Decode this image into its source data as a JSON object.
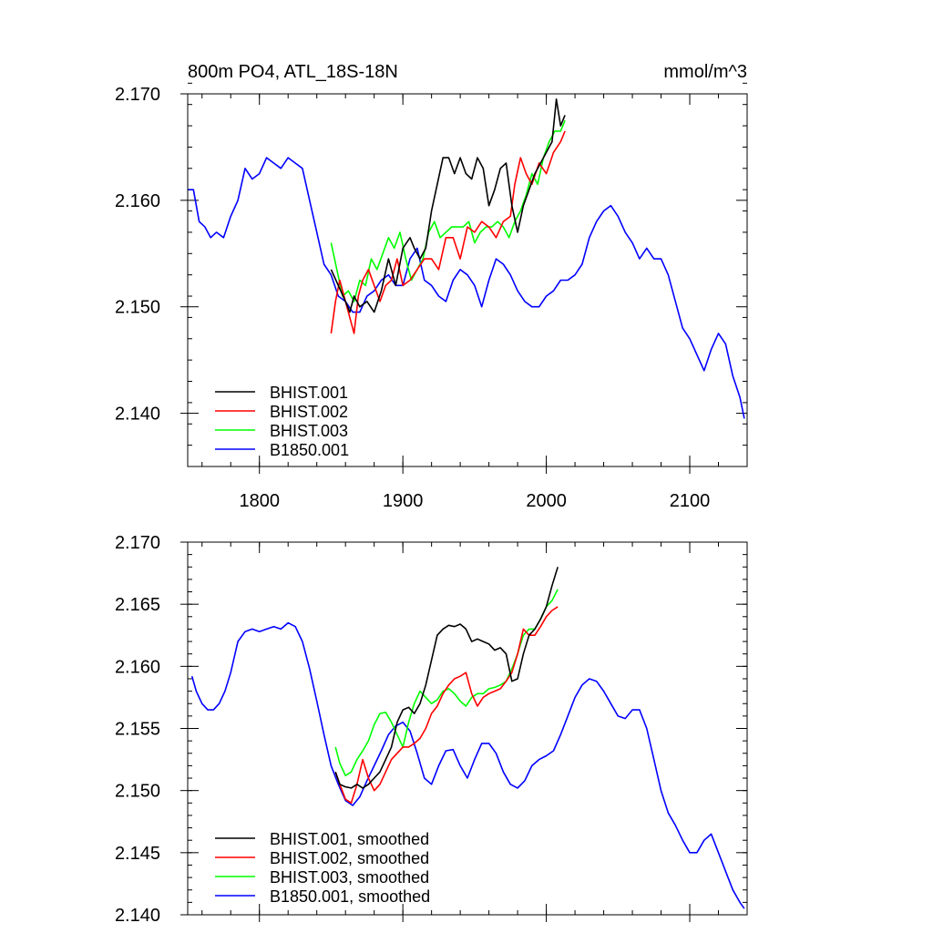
{
  "chart_data": [
    {
      "type": "line",
      "title": "800m PO4, ATL_18S-18N",
      "units": "mmol/m^3",
      "xlim": [
        1750,
        2140
      ],
      "ylim": [
        2.135,
        2.17
      ],
      "xticks": [
        "1800",
        "1900",
        "2000",
        "2100"
      ],
      "yticks": [
        "2.140",
        "2.150",
        "2.160",
        "2.170"
      ],
      "legend_position": "bottom-left",
      "series": [
        {
          "name": "BHIST.001",
          "color": "#000000",
          "x": [
            1850,
            1855,
            1860,
            1863,
            1866,
            1870,
            1875,
            1880,
            1885,
            1890,
            1895,
            1900,
            1905,
            1908,
            1912,
            1916,
            1920,
            1924,
            1928,
            1932,
            1936,
            1940,
            1944,
            1948,
            1952,
            1956,
            1960,
            1964,
            1968,
            1972,
            1976,
            1980,
            1984,
            1988,
            1992,
            1996,
            2000,
            2004,
            2007,
            2010,
            2013
          ],
          "y": [
            2.1535,
            2.152,
            2.1505,
            2.1495,
            2.151,
            2.15,
            2.1505,
            2.1495,
            2.1515,
            2.1545,
            2.152,
            2.1555,
            2.1565,
            2.1555,
            2.1545,
            2.1555,
            2.159,
            2.1615,
            2.164,
            2.164,
            2.1625,
            2.164,
            2.1625,
            2.162,
            2.164,
            2.163,
            2.1595,
            2.161,
            2.163,
            2.1635,
            2.1595,
            2.157,
            2.1595,
            2.161,
            2.1625,
            2.1635,
            2.1645,
            2.1655,
            2.1695,
            2.167,
            2.168
          ]
        },
        {
          "name": "BHIST.002",
          "color": "#ff0000",
          "x": [
            1850,
            1853,
            1856,
            1860,
            1863,
            1866,
            1869,
            1872,
            1876,
            1880,
            1884,
            1888,
            1892,
            1896,
            1900,
            1905,
            1910,
            1915,
            1920,
            1925,
            1930,
            1935,
            1940,
            1945,
            1950,
            1955,
            1960,
            1965,
            1970,
            1975,
            1978,
            1982,
            1986,
            1990,
            1995,
            2000,
            2005,
            2010,
            2013
          ],
          "y": [
            2.1475,
            2.1505,
            2.1525,
            2.1505,
            2.149,
            2.1475,
            2.151,
            2.1525,
            2.1535,
            2.152,
            2.1505,
            2.152,
            2.1525,
            2.1545,
            2.152,
            2.1525,
            2.1535,
            2.1545,
            2.1545,
            2.1535,
            2.1565,
            2.1565,
            2.1545,
            2.1575,
            2.157,
            2.158,
            2.1575,
            2.1565,
            2.158,
            2.1585,
            2.1615,
            2.164,
            2.1625,
            2.1615,
            2.1635,
            2.1625,
            2.1645,
            2.1655,
            2.1665
          ]
        },
        {
          "name": "BHIST.003",
          "color": "#00ff00",
          "x": [
            1850,
            1854,
            1858,
            1862,
            1866,
            1870,
            1874,
            1878,
            1882,
            1886,
            1890,
            1894,
            1898,
            1902,
            1906,
            1910,
            1914,
            1918,
            1922,
            1926,
            1930,
            1934,
            1938,
            1942,
            1946,
            1950,
            1954,
            1958,
            1962,
            1966,
            1970,
            1974,
            1978,
            1982,
            1986,
            1990,
            1994,
            1998,
            2002,
            2006,
            2010,
            2013
          ],
          "y": [
            2.156,
            2.1535,
            2.151,
            2.1515,
            2.1505,
            2.1525,
            2.152,
            2.1545,
            2.1535,
            2.155,
            2.1565,
            2.1555,
            2.157,
            2.1545,
            2.1525,
            2.1535,
            2.1545,
            2.157,
            2.158,
            2.1565,
            2.157,
            2.1575,
            2.1575,
            2.1575,
            2.158,
            2.156,
            2.157,
            2.1575,
            2.1575,
            2.158,
            2.1575,
            2.1565,
            2.158,
            2.159,
            2.1605,
            2.1625,
            2.1615,
            2.164,
            2.1655,
            2.1665,
            2.1665,
            2.1675
          ]
        },
        {
          "name": "B1850.001",
          "color": "#0000ff",
          "x": [
            1750,
            1754,
            1758,
            1762,
            1766,
            1770,
            1775,
            1780,
            1785,
            1790,
            1795,
            1800,
            1805,
            1810,
            1815,
            1820,
            1825,
            1830,
            1835,
            1840,
            1845,
            1850,
            1855,
            1860,
            1865,
            1870,
            1875,
            1880,
            1885,
            1890,
            1895,
            1900,
            1905,
            1910,
            1915,
            1920,
            1925,
            1930,
            1935,
            1940,
            1945,
            1950,
            1955,
            1960,
            1965,
            1970,
            1975,
            1980,
            1985,
            1990,
            1995,
            2000,
            2005,
            2010,
            2015,
            2020,
            2025,
            2030,
            2035,
            2040,
            2045,
            2050,
            2055,
            2060,
            2065,
            2070,
            2075,
            2080,
            2085,
            2090,
            2095,
            2100,
            2105,
            2110,
            2115,
            2120,
            2125,
            2130,
            2135,
            2138
          ],
          "y": [
            2.161,
            2.161,
            2.158,
            2.1575,
            2.1565,
            2.157,
            2.1565,
            2.1585,
            2.16,
            2.163,
            2.162,
            2.1625,
            2.164,
            2.1635,
            2.163,
            2.164,
            2.1635,
            2.163,
            2.16,
            2.157,
            2.154,
            2.153,
            2.151,
            2.1505,
            2.1495,
            2.1495,
            2.151,
            2.1515,
            2.1525,
            2.153,
            2.152,
            2.152,
            2.1545,
            2.1555,
            2.1525,
            2.152,
            2.151,
            2.1505,
            2.1525,
            2.1535,
            2.153,
            2.152,
            2.15,
            2.1525,
            2.1545,
            2.154,
            2.153,
            2.1515,
            2.1505,
            2.15,
            2.15,
            2.151,
            2.1515,
            2.1525,
            2.1525,
            2.153,
            2.154,
            2.1565,
            2.158,
            2.159,
            2.1595,
            2.1585,
            2.157,
            2.156,
            2.1545,
            2.1555,
            2.1545,
            2.1545,
            2.153,
            2.1505,
            2.148,
            2.147,
            2.1455,
            2.144,
            2.146,
            2.1475,
            2.1465,
            2.1435,
            2.1415,
            2.1395
          ]
        }
      ]
    },
    {
      "type": "line",
      "xlim": [
        1750,
        2140
      ],
      "ylim": [
        2.14,
        2.17
      ],
      "xticks": [],
      "yticks": [
        "2.140",
        "2.145",
        "2.150",
        "2.155",
        "2.160",
        "2.165",
        "2.170"
      ],
      "legend_position": "bottom-left",
      "series": [
        {
          "name": "BHIST.001, smoothed",
          "color": "#000000",
          "x": [
            1853,
            1856,
            1860,
            1864,
            1868,
            1872,
            1876,
            1880,
            1884,
            1888,
            1892,
            1896,
            1900,
            1904,
            1908,
            1912,
            1916,
            1920,
            1924,
            1928,
            1932,
            1936,
            1940,
            1944,
            1948,
            1952,
            1956,
            1960,
            1964,
            1968,
            1972,
            1976,
            1980,
            1984,
            1988,
            1992,
            1996,
            2000,
            2004,
            2008
          ],
          "y": [
            2.1515,
            2.1505,
            2.1503,
            2.1502,
            2.1505,
            2.1502,
            2.1505,
            2.151,
            2.1515,
            2.1525,
            2.1535,
            2.1555,
            2.1565,
            2.1567,
            2.1562,
            2.157,
            2.1585,
            2.1605,
            2.1625,
            2.163,
            2.1633,
            2.1632,
            2.1634,
            2.163,
            2.162,
            2.1622,
            2.162,
            2.1618,
            2.1613,
            2.1615,
            2.161,
            2.1588,
            2.159,
            2.161,
            2.1625,
            2.163,
            2.1638,
            2.1648,
            2.1665,
            2.168
          ]
        },
        {
          "name": "BHIST.002, smoothed",
          "color": "#ff0000",
          "x": [
            1853,
            1856,
            1860,
            1864,
            1868,
            1872,
            1876,
            1880,
            1884,
            1888,
            1892,
            1896,
            1900,
            1904,
            1908,
            1912,
            1916,
            1920,
            1924,
            1928,
            1932,
            1936,
            1940,
            1944,
            1948,
            1952,
            1956,
            1960,
            1964,
            1968,
            1972,
            1976,
            1980,
            1984,
            1988,
            1992,
            1996,
            2000,
            2004,
            2008
          ],
          "y": [
            2.1515,
            2.1505,
            2.1493,
            2.149,
            2.1505,
            2.1525,
            2.151,
            2.15,
            2.1505,
            2.1515,
            2.1525,
            2.153,
            2.1535,
            2.1535,
            2.1538,
            2.1542,
            2.155,
            2.1562,
            2.1568,
            2.1578,
            2.1585,
            2.159,
            2.1592,
            2.1595,
            2.1578,
            2.1568,
            2.1575,
            2.1578,
            2.158,
            2.1582,
            2.1588,
            2.1595,
            2.161,
            2.163,
            2.1625,
            2.1625,
            2.1632,
            2.164,
            2.1645,
            2.1648
          ]
        },
        {
          "name": "BHIST.003, smoothed",
          "color": "#00ff00",
          "x": [
            1853,
            1856,
            1860,
            1864,
            1868,
            1872,
            1876,
            1880,
            1884,
            1888,
            1892,
            1896,
            1900,
            1904,
            1908,
            1912,
            1916,
            1920,
            1924,
            1928,
            1932,
            1936,
            1940,
            1944,
            1948,
            1952,
            1956,
            1960,
            1964,
            1968,
            1972,
            1976,
            1980,
            1984,
            1988,
            1992,
            1996,
            2000,
            2004,
            2008
          ],
          "y": [
            2.1535,
            2.1522,
            2.1512,
            2.1515,
            2.1525,
            2.1532,
            2.154,
            2.1553,
            2.1562,
            2.1563,
            2.1555,
            2.1545,
            2.1535,
            2.1555,
            2.157,
            2.158,
            2.1575,
            2.157,
            2.1573,
            2.158,
            2.1582,
            2.1578,
            2.1572,
            2.1568,
            2.1575,
            2.1578,
            2.1578,
            2.1582,
            2.1583,
            2.1585,
            2.1588,
            2.1598,
            2.161,
            2.1625,
            2.163,
            2.163,
            2.1638,
            2.1648,
            2.1653,
            2.1662
          ]
        },
        {
          "name": "B1850.001, smoothed",
          "color": "#0000ff",
          "x": [
            1753,
            1756,
            1760,
            1764,
            1768,
            1772,
            1776,
            1780,
            1785,
            1790,
            1795,
            1800,
            1805,
            1810,
            1815,
            1820,
            1825,
            1830,
            1835,
            1840,
            1845,
            1850,
            1855,
            1860,
            1865,
            1870,
            1875,
            1880,
            1885,
            1890,
            1895,
            1900,
            1905,
            1910,
            1915,
            1920,
            1925,
            1930,
            1935,
            1940,
            1945,
            1950,
            1955,
            1960,
            1965,
            1970,
            1975,
            1980,
            1985,
            1990,
            1995,
            2000,
            2005,
            2010,
            2015,
            2020,
            2025,
            2030,
            2035,
            2040,
            2045,
            2050,
            2055,
            2060,
            2065,
            2070,
            2075,
            2080,
            2085,
            2090,
            2095,
            2100,
            2105,
            2110,
            2115,
            2120,
            2125,
            2130,
            2135,
            2138
          ],
          "y": [
            2.1592,
            2.158,
            2.157,
            2.1565,
            2.1565,
            2.157,
            2.158,
            2.1595,
            2.162,
            2.1628,
            2.163,
            2.1628,
            2.163,
            2.1632,
            2.163,
            2.1635,
            2.1632,
            2.162,
            2.1598,
            2.1572,
            2.1545,
            2.152,
            2.1505,
            2.1492,
            2.1488,
            2.1495,
            2.1508,
            2.152,
            2.1532,
            2.1545,
            2.1552,
            2.1555,
            2.1548,
            2.153,
            2.151,
            2.1505,
            2.152,
            2.1532,
            2.1533,
            2.152,
            2.151,
            2.1525,
            2.1538,
            2.1538,
            2.153,
            2.1515,
            2.1505,
            2.1502,
            2.1508,
            2.152,
            2.1525,
            2.1528,
            2.1532,
            2.1545,
            2.156,
            2.1575,
            2.1585,
            2.159,
            2.1588,
            2.158,
            2.157,
            2.156,
            2.1558,
            2.1565,
            2.1565,
            2.155,
            2.1525,
            2.15,
            2.1482,
            2.1472,
            2.146,
            2.145,
            2.145,
            2.146,
            2.1465,
            2.145,
            2.1435,
            2.142,
            2.141,
            2.1405
          ]
        }
      ]
    }
  ]
}
